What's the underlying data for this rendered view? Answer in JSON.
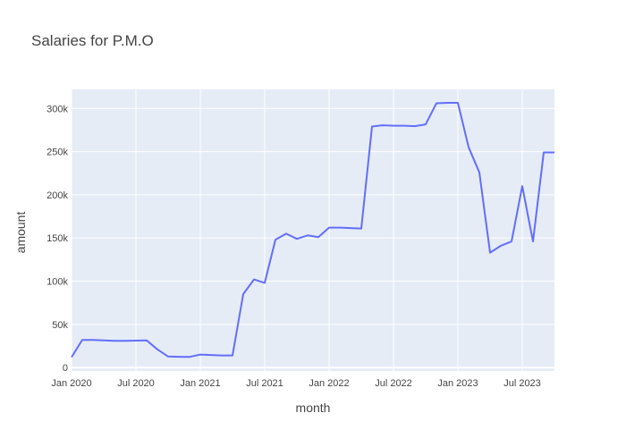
{
  "chart_data": {
    "type": "line",
    "title": "Salaries for P.M.O",
    "xlabel": "month",
    "ylabel": "amount",
    "x_tick_labels": [
      "Jan 2020",
      "Jul 2020",
      "Jan 2021",
      "Jul 2021",
      "Jan 2022",
      "Jul 2022",
      "Jan 2023",
      "Jul 2023"
    ],
    "x_tick_dates": [
      "2020-01",
      "2020-07",
      "2021-01",
      "2021-07",
      "2022-01",
      "2022-07",
      "2023-01",
      "2023-07"
    ],
    "y_ticks": [
      0,
      50000,
      100000,
      150000,
      200000,
      250000,
      300000
    ],
    "y_tick_labels": [
      "0",
      "50k",
      "100k",
      "150k",
      "200k",
      "250k",
      "300k"
    ],
    "xlim": [
      "2020-01",
      "2023-10"
    ],
    "ylim": [
      -4000,
      322000
    ],
    "grid": true,
    "colors": {
      "line": "#636efa",
      "plot_bg": "#e5ecf6",
      "grid": "#ffffff",
      "text": "#444444"
    },
    "series": [
      {
        "x": [
          "2020-01",
          "2020-02",
          "2020-03",
          "2020-04",
          "2020-05",
          "2020-06",
          "2020-07",
          "2020-08",
          "2020-09",
          "2020-10",
          "2020-11",
          "2020-12",
          "2021-01",
          "2021-02",
          "2021-03",
          "2021-04",
          "2021-05",
          "2021-06",
          "2021-07",
          "2021-08",
          "2021-09",
          "2021-10",
          "2021-11",
          "2021-12",
          "2022-01",
          "2022-02",
          "2022-03",
          "2022-04",
          "2022-05",
          "2022-06",
          "2022-07",
          "2022-08",
          "2022-09",
          "2022-10",
          "2022-11",
          "2022-12",
          "2023-01",
          "2023-02",
          "2023-03",
          "2023-04",
          "2023-05",
          "2023-06",
          "2023-07",
          "2023-08",
          "2023-09",
          "2023-10"
        ],
        "values": [
          12000,
          32000,
          32000,
          31500,
          31000,
          31000,
          31200,
          31500,
          21000,
          12800,
          12500,
          12400,
          15000,
          14500,
          14000,
          14000,
          85000,
          102000,
          98000,
          148000,
          155000,
          149000,
          153000,
          151000,
          162000,
          162000,
          161500,
          161000,
          279000,
          280500,
          280000,
          280000,
          279500,
          281500,
          306000,
          306500,
          306500,
          255000,
          226000,
          133000,
          141000,
          146000,
          210000,
          146000,
          249000,
          249000
        ]
      }
    ]
  }
}
